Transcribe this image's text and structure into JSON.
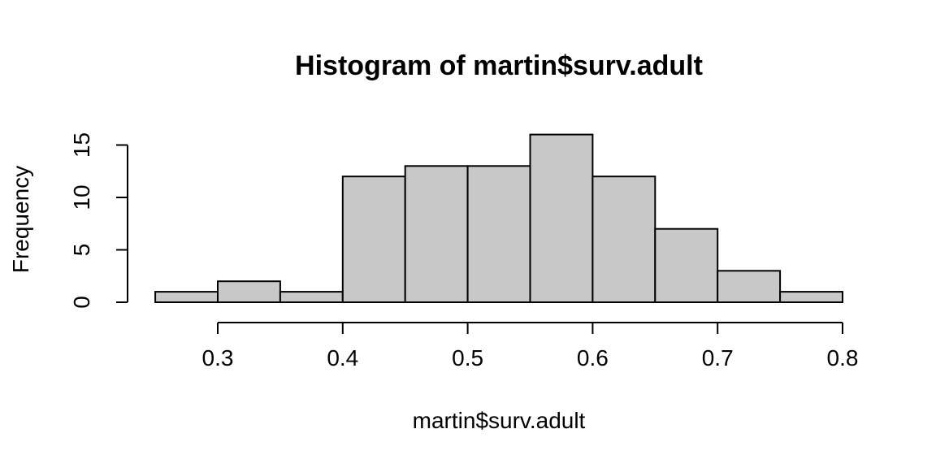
{
  "chart_data": {
    "type": "bar",
    "title": "Histogram of martin$surv.adult",
    "xlabel": "martin$surv.adult",
    "ylabel": "Frequency",
    "bins": [
      {
        "start": 0.25,
        "end": 0.3,
        "count": 1
      },
      {
        "start": 0.3,
        "end": 0.35,
        "count": 2
      },
      {
        "start": 0.35,
        "end": 0.4,
        "count": 1
      },
      {
        "start": 0.4,
        "end": 0.45,
        "count": 12
      },
      {
        "start": 0.45,
        "end": 0.5,
        "count": 13
      },
      {
        "start": 0.5,
        "end": 0.55,
        "count": 13
      },
      {
        "start": 0.55,
        "end": 0.6,
        "count": 16
      },
      {
        "start": 0.6,
        "end": 0.65,
        "count": 12
      },
      {
        "start": 0.65,
        "end": 0.7,
        "count": 7
      },
      {
        "start": 0.7,
        "end": 0.75,
        "count": 3
      },
      {
        "start": 0.75,
        "end": 0.8,
        "count": 1
      }
    ],
    "xticks": [
      "0.3",
      "0.4",
      "0.5",
      "0.6",
      "0.7",
      "0.8"
    ],
    "yticks": [
      "0",
      "5",
      "10",
      "15"
    ],
    "xlim": [
      0.25,
      0.8
    ],
    "ylim": [
      0,
      16
    ],
    "grid": false,
    "colors": {
      "bar_fill": "#c8c8c8",
      "bar_stroke": "#000000"
    }
  }
}
